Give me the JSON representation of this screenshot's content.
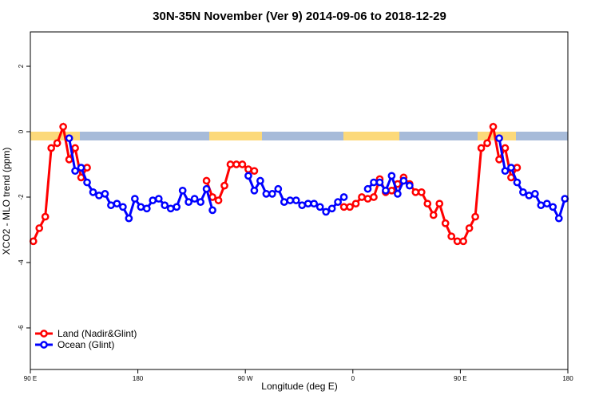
{
  "chart_data": {
    "type": "line",
    "title": "30N-35N November (Ver 9)   2014-09-06 to 2018-12-29",
    "x_label": "Longitude (deg E)",
    "y_label": "XCO2 - MLO trend (ppm)",
    "xlim": [
      90,
      540
    ],
    "ylim": [
      -7.27,
      3.05
    ],
    "xticks": [
      {
        "value": 90,
        "label": "90 E"
      },
      {
        "value": 180,
        "label": "180"
      },
      {
        "value": 270,
        "label": "90 W"
      },
      {
        "value": 360,
        "label": "0"
      },
      {
        "value": 450,
        "label": "90 E"
      },
      {
        "value": 540,
        "label": "180"
      }
    ],
    "yticks": [
      2,
      0,
      -2,
      -4,
      -6
    ],
    "legend": "bottomleft",
    "series": [
      {
        "name": "Land (Nadir&Glint)",
        "color": "#ff0000",
        "x": [
          92.5,
          97.5,
          102.5,
          107.5,
          112.5,
          117.5,
          122.5,
          127.5,
          132.5,
          137.5,
          187.5,
          237.5,
          242.5,
          247.5,
          252.5,
          257.5,
          262.5,
          267.5,
          272.5,
          277.5,
          315,
          352.5,
          357.5,
          362.5,
          367.5,
          372.5,
          377.5,
          382.5,
          387.5,
          392.5,
          397.5,
          402.5,
          407.5,
          412.5,
          417.5,
          422.5,
          427.5,
          432.5,
          437.5,
          442.5,
          447.5,
          452.5,
          457.5,
          462.5,
          467.5,
          472.5,
          477.5,
          482.5,
          487.5,
          492.5,
          497.5
        ],
        "values": [
          -3.35,
          -2.95,
          -2.6,
          -0.5,
          -0.35,
          0.15,
          -0.85,
          -0.5,
          -1.4,
          -1.1,
          null,
          -1.5,
          -2.0,
          -2.1,
          -1.65,
          -1.0,
          -1.0,
          -1.0,
          -1.15,
          -1.2,
          null,
          -2.3,
          -2.3,
          -2.2,
          -2.0,
          -2.05,
          -2.0,
          -1.45,
          -1.85,
          -1.8,
          -1.6,
          -1.4,
          -1.6,
          -1.85,
          -1.85,
          -2.2,
          -2.55,
          -2.2,
          -2.8,
          -3.2,
          -3.35,
          -3.35,
          -2.95,
          -2.6,
          -0.5,
          -0.35,
          0.15,
          -0.85,
          -0.5,
          -1.4,
          -1.1
        ]
      },
      {
        "name": "Ocean (Glint)",
        "color": "#0000ff",
        "x": [
          122.5,
          127.5,
          132.5,
          137.5,
          142.5,
          147.5,
          152.5,
          157.5,
          162.5,
          167.5,
          172.5,
          177.5,
          182.5,
          187.5,
          192.5,
          197.5,
          202.5,
          207.5,
          212.5,
          217.5,
          222.5,
          227.5,
          232.5,
          237.5,
          242.5,
          257.5,
          272.5,
          277.5,
          282.5,
          287.5,
          292.5,
          297.5,
          302.5,
          307.5,
          312.5,
          317.5,
          322.5,
          327.5,
          332.5,
          337.5,
          342.5,
          347.5,
          352.5,
          362.5,
          372.5,
          377.5,
          382.5,
          387.5,
          392.5,
          397.5,
          402.5,
          407.5,
          445,
          482.5,
          487.5,
          492.5,
          497.5,
          502.5,
          507.5,
          512.5,
          517.5,
          522.5,
          527.5,
          532.5,
          537.5
        ],
        "values": [
          -0.2,
          -1.2,
          -1.1,
          -1.55,
          -1.85,
          -1.95,
          -1.9,
          -2.25,
          -2.2,
          -2.3,
          -2.65,
          -2.05,
          -2.3,
          -2.35,
          -2.1,
          -2.05,
          -2.25,
          -2.35,
          -2.3,
          -1.8,
          -2.15,
          -2.05,
          -2.15,
          -1.75,
          -2.4,
          null,
          -1.35,
          -1.8,
          -1.5,
          -1.9,
          -1.9,
          -1.75,
          -2.15,
          -2.1,
          -2.1,
          -2.25,
          -2.2,
          -2.2,
          -2.3,
          -2.45,
          -2.35,
          -2.15,
          -2.0,
          null,
          -1.75,
          -1.55,
          -1.55,
          -1.8,
          -1.35,
          -1.9,
          -1.5,
          -1.65,
          null,
          -0.2,
          -1.2,
          -1.1,
          -1.55,
          -1.85,
          -1.95,
          -1.9,
          -2.25,
          -2.2,
          -2.3,
          -2.65,
          -2.05
        ]
      }
    ]
  }
}
